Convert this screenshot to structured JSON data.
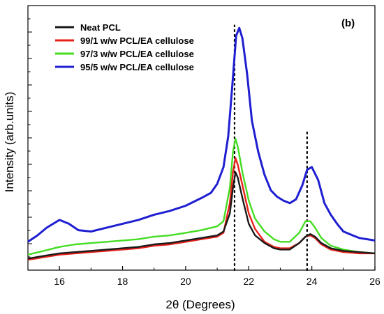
{
  "chart_data": {
    "type": "line",
    "panel_label": "(b)",
    "xlabel": "2θ (Degrees)",
    "ylabel": "Intensity (arb.units)",
    "xlim": [
      15,
      26
    ],
    "x_ticks": [
      16,
      18,
      20,
      22,
      24,
      26
    ],
    "y_ticks_labeled": false,
    "ylim": [
      0,
      100
    ],
    "grid": false,
    "legend_position": "top-left",
    "reference_lines": [
      {
        "x": 21.55,
        "style": "dotted",
        "y_top": 95
      },
      {
        "x": 23.85,
        "style": "dotted",
        "y_top": 54
      }
    ],
    "series": [
      {
        "name": "Neat PCL",
        "color": "#1a1a1a",
        "x": [
          15,
          15.5,
          16,
          16.5,
          17,
          17.5,
          18,
          18.5,
          19,
          19.5,
          20,
          20.5,
          21,
          21.2,
          21.4,
          21.5,
          21.58,
          21.65,
          21.8,
          22,
          22.2,
          22.5,
          22.8,
          23,
          23.3,
          23.6,
          23.8,
          23.95,
          24.1,
          24.3,
          24.6,
          25,
          25.5,
          26
        ],
        "y": [
          4.5,
          5.5,
          6.5,
          7,
          7.5,
          8,
          8.5,
          9,
          10,
          10.5,
          11.5,
          12.5,
          13.5,
          15,
          22,
          32,
          38,
          36,
          28,
          18,
          13.5,
          10.5,
          8.5,
          8,
          8,
          10.5,
          13,
          14,
          13,
          10.5,
          8.5,
          7.5,
          7,
          6.5
        ]
      },
      {
        "name": "99/1 w/w PCL/EA cellulose",
        "color": "#e8201a",
        "x": [
          15,
          15.5,
          16,
          16.5,
          17,
          17.5,
          18,
          18.5,
          19,
          19.5,
          20,
          20.5,
          21,
          21.2,
          21.4,
          21.5,
          21.58,
          21.65,
          21.8,
          22,
          22.2,
          22.5,
          22.8,
          23,
          23.3,
          23.6,
          23.8,
          23.95,
          24.1,
          24.3,
          24.6,
          25,
          25.5,
          26
        ],
        "y": [
          4,
          5,
          6,
          6.5,
          7,
          7.5,
          8,
          8.5,
          9.5,
          10,
          11,
          12,
          13,
          14.5,
          26,
          38,
          43.5,
          41,
          33,
          22,
          16,
          11,
          9,
          8.5,
          8.5,
          10.5,
          13,
          13.5,
          12.5,
          10,
          8,
          7,
          6.5,
          6.5
        ]
      },
      {
        "name": "97/3 w/w PCL/EA cellulose",
        "color": "#44dd22",
        "x": [
          15,
          15.5,
          16,
          16.5,
          17,
          17.5,
          18,
          18.5,
          19,
          19.5,
          20,
          20.5,
          21,
          21.2,
          21.4,
          21.5,
          21.58,
          21.65,
          21.8,
          22,
          22.2,
          22.5,
          22.8,
          23,
          23.3,
          23.6,
          23.8,
          23.95,
          24.1,
          24.3,
          24.6,
          25,
          25.5,
          26
        ],
        "y": [
          6,
          7.5,
          9,
          10,
          10.5,
          11,
          11.5,
          12,
          13,
          13.5,
          14.5,
          15.5,
          17,
          19,
          32,
          46,
          51,
          48,
          38,
          27,
          20,
          15,
          12,
          11,
          11,
          14.5,
          19,
          19,
          16.5,
          12.5,
          9.5,
          8,
          7,
          6.5
        ]
      },
      {
        "name": "95/5 w/w PCL/EA cellulose",
        "color": "#1f1fd1",
        "x": [
          15,
          15.3,
          15.6,
          16,
          16.3,
          16.6,
          17,
          17.5,
          18,
          18.5,
          19,
          19.5,
          20,
          20.5,
          20.8,
          21,
          21.2,
          21.35,
          21.5,
          21.6,
          21.7,
          21.8,
          21.95,
          22.1,
          22.3,
          22.5,
          22.7,
          22.9,
          23.1,
          23.3,
          23.5,
          23.7,
          23.85,
          24,
          24.2,
          24.4,
          24.6,
          24.8,
          25,
          25.5,
          26
        ],
        "y": [
          11,
          13.5,
          16.5,
          19.5,
          18,
          15.5,
          15,
          16.5,
          18,
          19.5,
          21.5,
          23,
          25,
          28,
          30,
          33.5,
          40,
          52,
          75,
          91,
          94,
          90,
          76,
          58,
          46,
          37,
          31,
          28.5,
          27,
          26,
          27.5,
          33,
          39,
          40,
          35,
          26,
          21.5,
          18,
          15,
          12.5,
          11.5
        ]
      }
    ]
  }
}
